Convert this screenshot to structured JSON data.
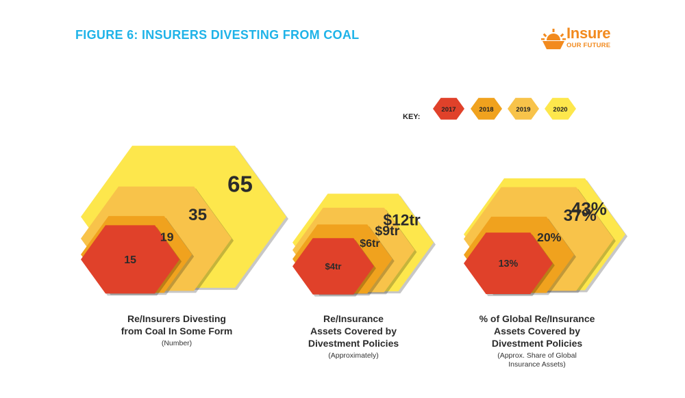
{
  "title": "FIGURE 6: INSURERS DIVESTING FROM COAL",
  "logo": {
    "word": "Insure",
    "sub": "OUR FUTURE",
    "icon": "sunrise-icon"
  },
  "colors": {
    "title": "#1fb3e8",
    "brand": "#f28a1e",
    "2017": "#e0412a",
    "2018": "#f0a21e",
    "2019": "#f8c34a",
    "2020": "#fde74c"
  },
  "key": {
    "label": "KEY:",
    "items": [
      {
        "year": "2017",
        "color": "#e0412a"
      },
      {
        "year": "2018",
        "color": "#f0a21e"
      },
      {
        "year": "2019",
        "color": "#f8c34a"
      },
      {
        "year": "2020",
        "color": "#fde74c"
      }
    ]
  },
  "chart_data": [
    {
      "type": "nested-hexagon",
      "title": "Re/Insurers Divesting\nfrom Coal In Some Form",
      "subtitle": "(Number)",
      "series": [
        {
          "name": "2017",
          "value": 15,
          "label": "15"
        },
        {
          "name": "2018",
          "value": 19,
          "label": "19"
        },
        {
          "name": "2019",
          "value": 35,
          "label": "35"
        },
        {
          "name": "2020",
          "value": 65,
          "label": "65"
        }
      ]
    },
    {
      "type": "nested-hexagon",
      "title": "Re/Insurance\nAssets Covered by\nDivestment Policies",
      "subtitle": "(Approximately)",
      "series": [
        {
          "name": "2017",
          "value": 4,
          "label": "$4tr"
        },
        {
          "name": "2018",
          "value": 6,
          "label": "$6tr"
        },
        {
          "name": "2019",
          "value": 9,
          "label": "$9tr"
        },
        {
          "name": "2020",
          "value": 12,
          "label": "$12tr"
        }
      ]
    },
    {
      "type": "nested-hexagon",
      "title": "% of Global Re/Insurance\nAssets Covered by\nDivestment Policies",
      "subtitle": "(Approx. Share of Global\nInsurance Assets)",
      "series": [
        {
          "name": "2017",
          "value": 13,
          "label": "13%"
        },
        {
          "name": "2018",
          "value": 20,
          "label": "20%"
        },
        {
          "name": "2019",
          "value": 37,
          "label": "37%"
        },
        {
          "name": "2020",
          "value": 43,
          "label": "43%"
        }
      ]
    }
  ]
}
